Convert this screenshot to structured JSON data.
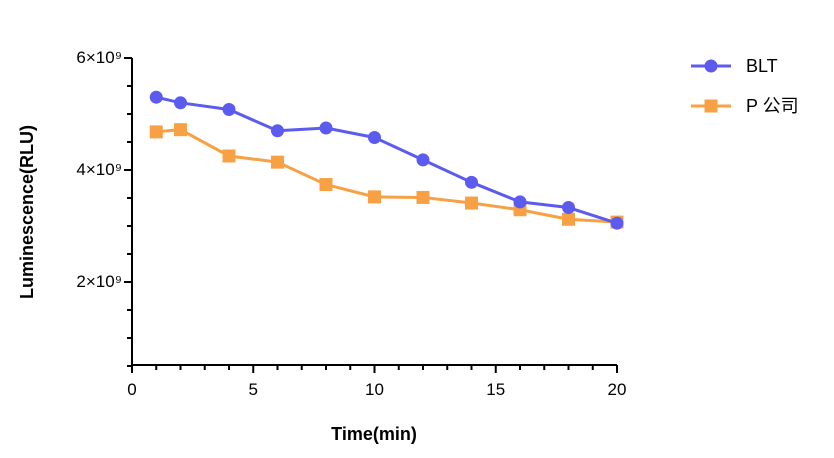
{
  "chart_data": {
    "type": "line",
    "title": "",
    "xlabel": "Time(min)",
    "ylabel": "Luminescence(RLU)",
    "xlim": [
      0,
      20
    ],
    "ylim": [
      500000000,
      6000000000
    ],
    "x_ticks": [
      0,
      5,
      10,
      15,
      20
    ],
    "x_tick_labels": [
      "0",
      "5",
      "10",
      "15",
      "20"
    ],
    "y_ticks": [
      2000000000,
      4000000000,
      6000000000
    ],
    "y_tick_labels": [
      "2×10⁹",
      "4×10⁹",
      "6×10⁹"
    ],
    "grid": false,
    "legend_position": "top-right",
    "series": [
      {
        "name": "BLT",
        "color": "#5b5bf0",
        "marker": "circle",
        "x": [
          1,
          2,
          4,
          6,
          8,
          10,
          12,
          14,
          16,
          18,
          20
        ],
        "values": [
          5300000000,
          5200000000,
          5080000000,
          4700000000,
          4750000000,
          4580000000,
          4180000000,
          3780000000,
          3430000000,
          3330000000,
          3050000000
        ]
      },
      {
        "name": "P 公司",
        "color": "#f7a044",
        "marker": "square",
        "x": [
          1,
          2,
          4,
          6,
          8,
          10,
          12,
          14,
          16,
          18,
          20
        ],
        "values": [
          4680000000,
          4720000000,
          4250000000,
          4140000000,
          3740000000,
          3520000000,
          3510000000,
          3410000000,
          3290000000,
          3120000000,
          3070000000
        ]
      }
    ]
  }
}
